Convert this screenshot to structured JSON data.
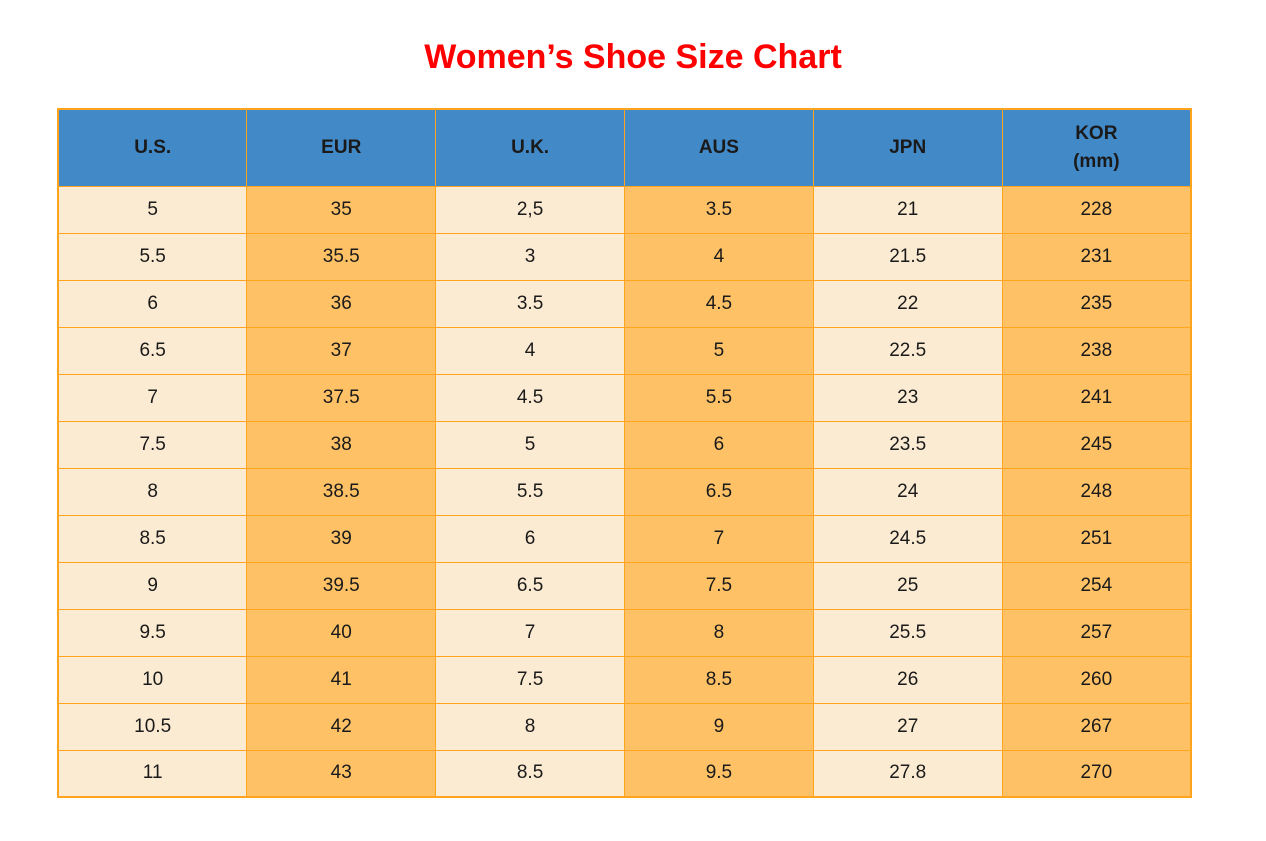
{
  "page": {
    "title": "Women’s Shoe Size Chart"
  },
  "colors": {
    "title_red": "#FF0000",
    "header_blue": "#4289C7",
    "cell_orange": "#FEC166",
    "cell_cream": "#FCEBD3",
    "border_orange": "#FFA41C",
    "text_color": "#1A1A1A"
  },
  "chart_data": {
    "type": "table",
    "title": "Women’s Shoe Size Chart",
    "columns": [
      "U.S.",
      "EUR",
      "U.K.",
      "AUS",
      "JPN",
      "KOR\n(mm)"
    ],
    "rows": [
      [
        "5",
        "35",
        "2,5",
        "3.5",
        "21",
        "228"
      ],
      [
        "5.5",
        "35.5",
        "3",
        "4",
        "21.5",
        "231"
      ],
      [
        "6",
        "36",
        "3.5",
        "4.5",
        "22",
        "235"
      ],
      [
        "6.5",
        "37",
        "4",
        "5",
        "22.5",
        "238"
      ],
      [
        "7",
        "37.5",
        "4.5",
        "5.5",
        "23",
        "241"
      ],
      [
        "7.5",
        "38",
        "5",
        "6",
        "23.5",
        "245"
      ],
      [
        "8",
        "38.5",
        "5.5",
        "6.5",
        "24",
        "248"
      ],
      [
        "8.5",
        "39",
        "6",
        "7",
        "24.5",
        "251"
      ],
      [
        "9",
        "39.5",
        "6.5",
        "7.5",
        "25",
        "254"
      ],
      [
        "9.5",
        "40",
        "7",
        "8",
        "25.5",
        "257"
      ],
      [
        "10",
        "41",
        "7.5",
        "8.5",
        "26",
        "260"
      ],
      [
        "10.5",
        "42",
        "8",
        "9",
        "27",
        "267"
      ],
      [
        "11",
        "43",
        "8.5",
        "9.5",
        "27.8",
        "270"
      ]
    ],
    "layout": {
      "header_background": "column headers on blue",
      "column_striping": "odd columns cream, even columns orange",
      "grid": "on"
    }
  }
}
